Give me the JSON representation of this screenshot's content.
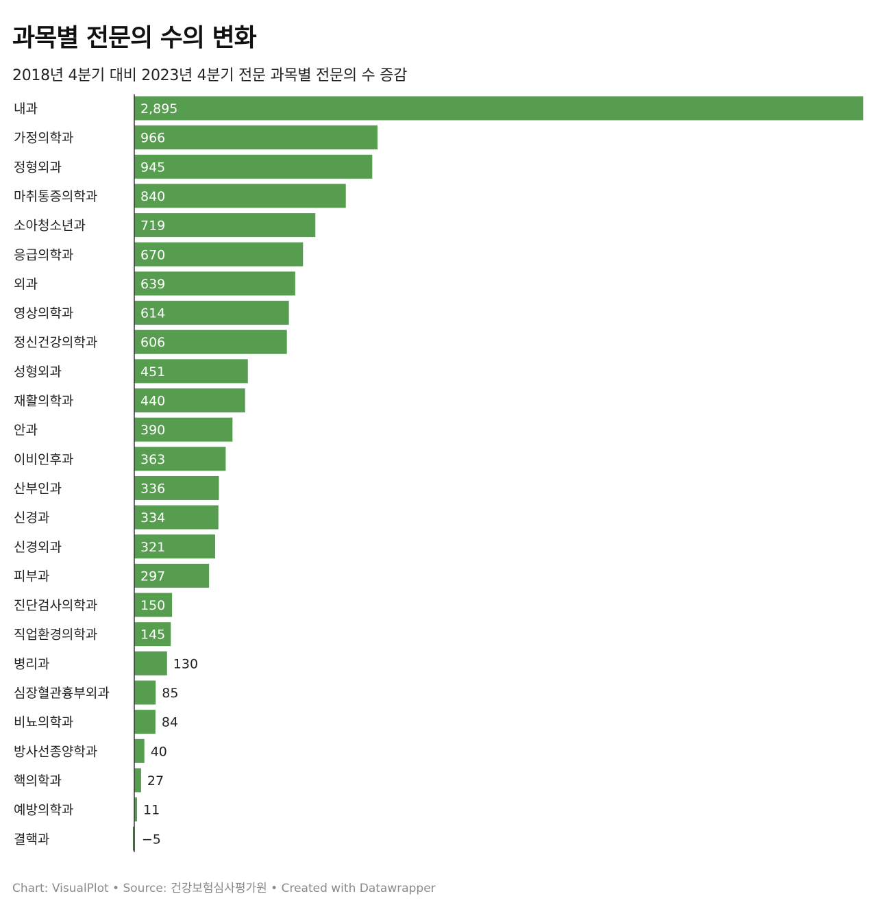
{
  "chart_data": {
    "type": "bar",
    "orientation": "horizontal",
    "title": "과목별 전문의 수의 변화",
    "subtitle": "2018년 4분기 대비 2023년 4분기 전문 과목별 전문의 수 증감",
    "categories": [
      "내과",
      "가정의학과",
      "정형외과",
      "마취통증의학과",
      "소아청소년과",
      "응급의학과",
      "외과",
      "영상의학과",
      "정신건강의학과",
      "성형외과",
      "재활의학과",
      "안과",
      "이비인후과",
      "산부인과",
      "신경과",
      "신경외과",
      "피부과",
      "진단검사의학과",
      "직업환경의학과",
      "병리과",
      "심장혈관흉부외과",
      "비뇨의학과",
      "방사선종양학과",
      "핵의학과",
      "예방의학과",
      "결핵과"
    ],
    "values": [
      2895,
      966,
      945,
      840,
      719,
      670,
      639,
      614,
      606,
      451,
      440,
      390,
      363,
      336,
      334,
      321,
      297,
      150,
      145,
      130,
      85,
      84,
      40,
      27,
      11,
      -5
    ],
    "value_labels": [
      "2,895",
      "966",
      "945",
      "840",
      "719",
      "670",
      "639",
      "614",
      "606",
      "451",
      "440",
      "390",
      "363",
      "336",
      "334",
      "321",
      "297",
      "150",
      "145",
      "130",
      "85",
      "84",
      "40",
      "27",
      "11",
      "−5"
    ],
    "xlim": [
      -5,
      2895
    ],
    "bar_color": "#569d4f",
    "negative_bar_color": "#2f6b2a",
    "axis_line_color": "#333333"
  },
  "footer": "Chart: VisualPlot • Source: 건강보험심사평가원 • Created with Datawrapper"
}
